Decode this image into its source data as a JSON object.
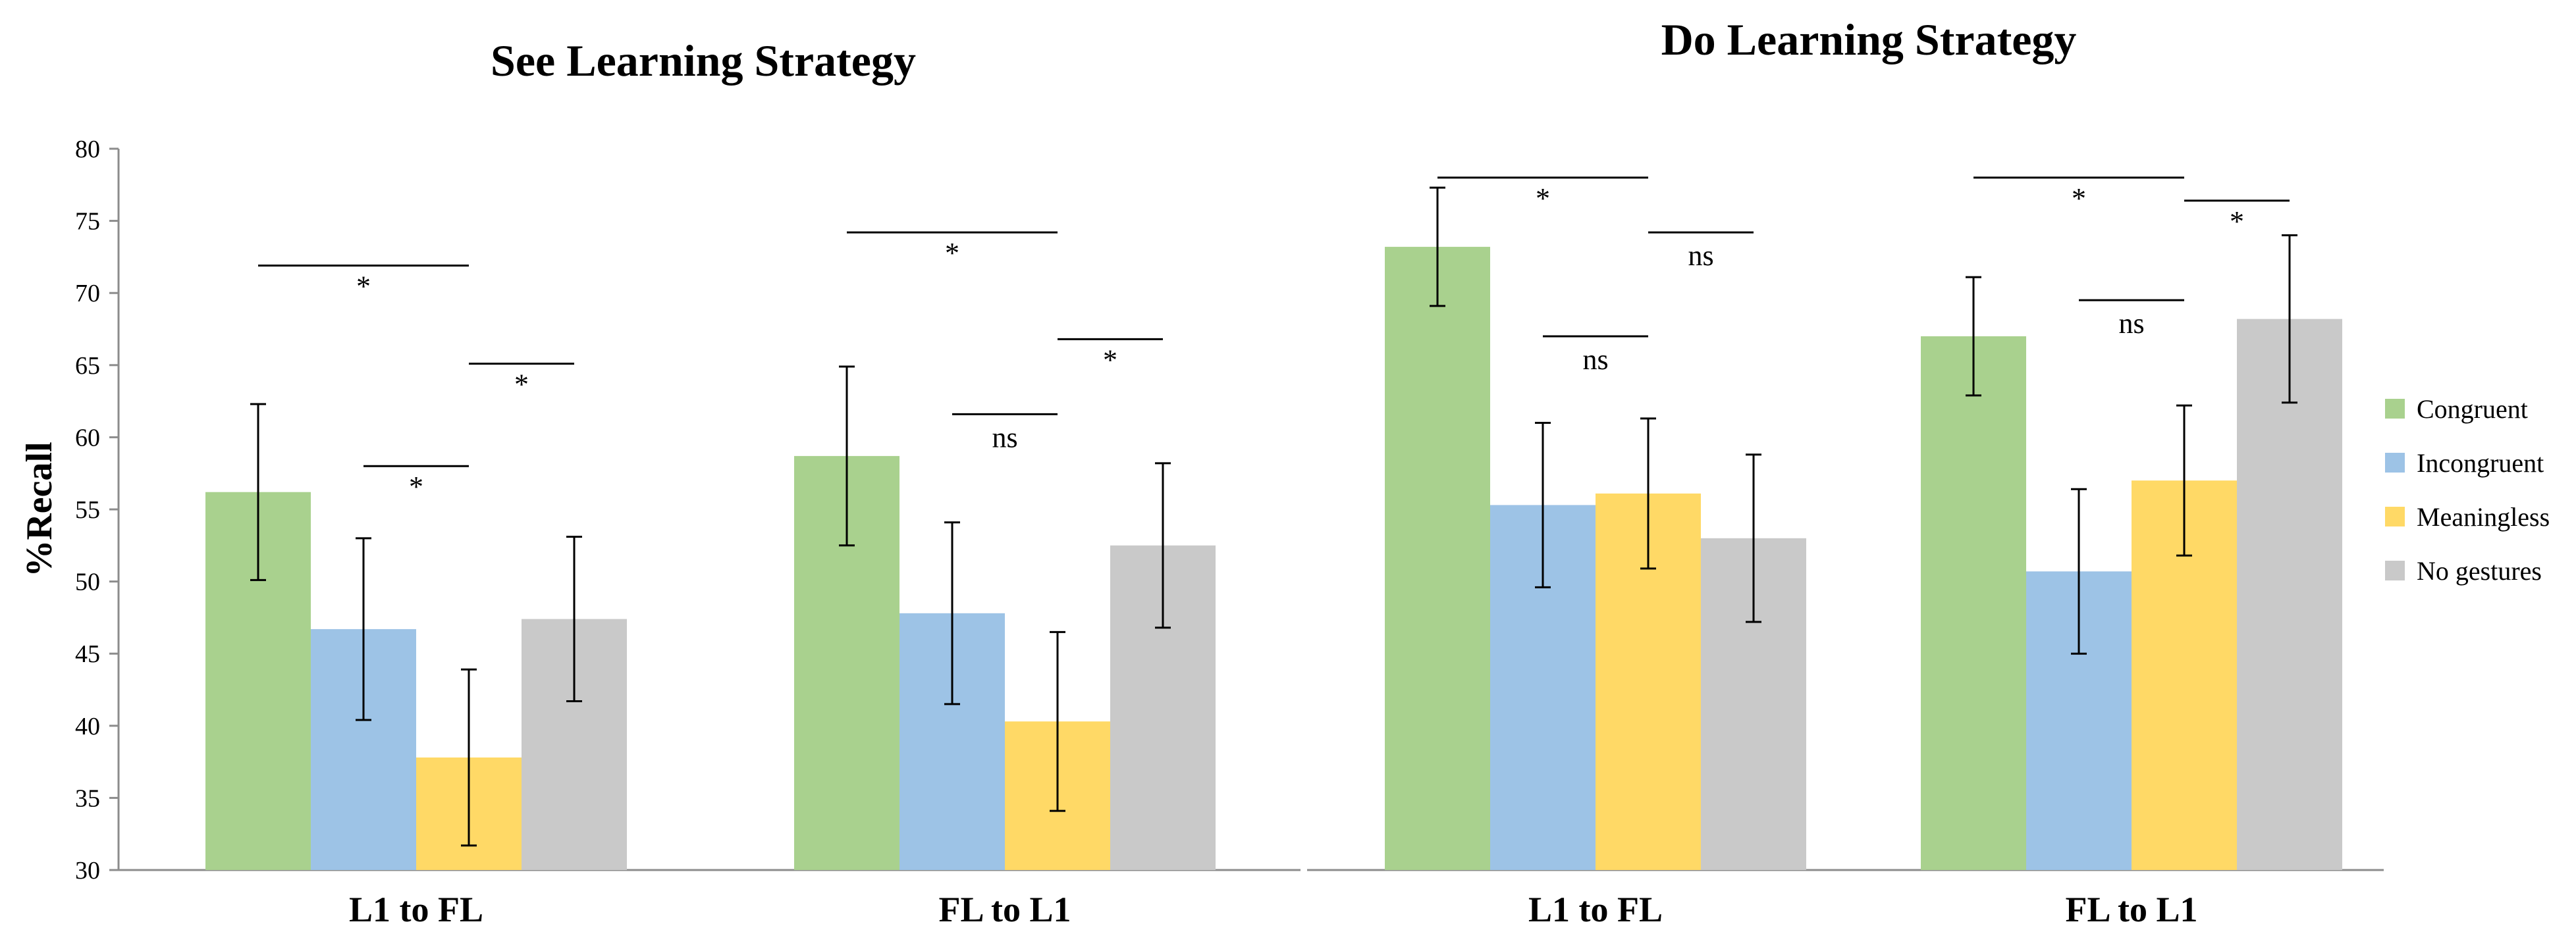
{
  "chart_data": {
    "type": "bar",
    "ylabel": "%Recall",
    "ylim": [
      30,
      80
    ],
    "yticks": [
      30,
      35,
      40,
      45,
      50,
      55,
      60,
      65,
      70,
      75,
      80
    ],
    "legend": {
      "position": "right",
      "entries": [
        "Congruent",
        "Incongruent",
        "Meaningless",
        "No gestures"
      ],
      "colors": [
        "#a9d18e",
        "#9dc3e6",
        "#ffd966",
        "#c9c9c9"
      ]
    },
    "panels": [
      {
        "title": "See Learning Strategy",
        "categories": [
          "L1 to FL",
          "FL to L1"
        ],
        "series": [
          {
            "name": "Congruent",
            "values": [
              56.2,
              58.7
            ],
            "errors": [
              6.1,
              6.2
            ]
          },
          {
            "name": "Incongruent",
            "values": [
              46.7,
              47.8
            ],
            "errors": [
              6.3,
              6.3
            ]
          },
          {
            "name": "Meaningless",
            "values": [
              37.8,
              40.3
            ],
            "errors": [
              6.1,
              6.2
            ]
          },
          {
            "name": "No gestures",
            "values": [
              47.4,
              52.5
            ],
            "errors": [
              5.7,
              5.7
            ]
          }
        ],
        "significance": [
          {
            "category": 0,
            "from": 0,
            "to": 2,
            "level": 71.9,
            "label": "*"
          },
          {
            "category": 0,
            "from": 1,
            "to": 2,
            "level": 58.0,
            "label": "*"
          },
          {
            "category": 0,
            "from": 2,
            "to": 3,
            "level": 65.1,
            "label": "*"
          },
          {
            "category": 1,
            "from": 0,
            "to": 2,
            "level": 74.2,
            "label": "*"
          },
          {
            "category": 1,
            "from": 1,
            "to": 2,
            "level": 61.6,
            "label": "ns"
          },
          {
            "category": 1,
            "from": 2,
            "to": 3,
            "level": 66.8,
            "label": "*"
          }
        ]
      },
      {
        "title": "Do Learning Strategy",
        "categories": [
          "L1 to FL",
          "FL to L1"
        ],
        "series": [
          {
            "name": "Congruent",
            "values": [
              73.2,
              67.0
            ],
            "errors": [
              4.1,
              4.1
            ]
          },
          {
            "name": "Incongruent",
            "values": [
              55.3,
              50.7
            ],
            "errors": [
              5.7,
              5.7
            ]
          },
          {
            "name": "Meaningless",
            "values": [
              56.1,
              57.0
            ],
            "errors": [
              5.2,
              5.2
            ]
          },
          {
            "name": "No gestures",
            "values": [
              53.0,
              68.2
            ],
            "errors": [
              5.8,
              5.8
            ]
          }
        ],
        "significance": [
          {
            "category": 0,
            "from": 0,
            "to": 2,
            "level": 78.0,
            "label": "*"
          },
          {
            "category": 0,
            "from": 1,
            "to": 2,
            "level": 67.0,
            "label": "ns"
          },
          {
            "category": 0,
            "from": 2,
            "to": 3,
            "level": 74.2,
            "label": "ns"
          },
          {
            "category": 1,
            "from": 0,
            "to": 2,
            "level": 78.0,
            "label": "*"
          },
          {
            "category": 1,
            "from": 1,
            "to": 2,
            "level": 69.5,
            "label": "ns"
          },
          {
            "category": 1,
            "from": 2,
            "to": 3,
            "level": 76.4,
            "label": "*"
          }
        ]
      }
    ]
  }
}
